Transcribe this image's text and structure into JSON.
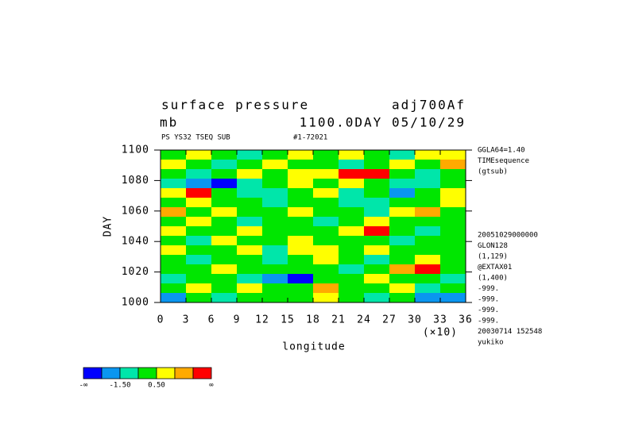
{
  "chart_data": {
    "type": "heatmap",
    "title": "surface pressure",
    "title_right": "adj700Af",
    "unit": "mb",
    "subtitle_right": "1100.0DAY 05/10/29",
    "sub_left": "PS YS32 TSEQ SUB",
    "sub_right": "#1-72021",
    "x_label": "longitude",
    "y_label": "DAY",
    "x_scale_label": "(×10)",
    "xlim": [
      0,
      36
    ],
    "ylim": [
      1000,
      1100
    ],
    "xticks": [
      0,
      3,
      6,
      9,
      12,
      15,
      18,
      21,
      24,
      27,
      30,
      33,
      36
    ],
    "yticks": [
      1000,
      1020,
      1040,
      1060,
      1080,
      1100
    ],
    "x_edges": [
      0,
      3,
      6,
      9,
      12,
      15,
      18,
      21,
      24,
      27,
      30,
      33,
      36
    ],
    "y_edges": [
      1100,
      1093.75,
      1087.5,
      1081.25,
      1075,
      1068.75,
      1062.5,
      1056.25,
      1050,
      1043.75,
      1037.5,
      1031.25,
      1025,
      1018.75,
      1012.5,
      1006.25,
      1000
    ],
    "z": [
      [
        0,
        1,
        0,
        -1,
        0,
        0.8,
        0,
        1,
        0,
        -0.6,
        1,
        1
      ],
      [
        1,
        0,
        -1,
        0,
        1,
        0,
        0,
        -1,
        0,
        1,
        0,
        2
      ],
      [
        0,
        -1,
        0,
        1,
        0,
        0.8,
        1,
        3,
        3,
        0,
        -1,
        0
      ],
      [
        -1,
        -2,
        -3,
        -1,
        0,
        1,
        0,
        1,
        0,
        -1,
        -1,
        0
      ],
      [
        1,
        3,
        0,
        -1,
        -1,
        0,
        1,
        -1,
        0,
        -2,
        0,
        1
      ],
      [
        0,
        1,
        0,
        0,
        -1,
        0,
        0,
        -1,
        -1,
        0,
        0,
        1
      ],
      [
        2,
        0,
        1,
        0,
        0,
        1,
        0,
        0,
        -1,
        1,
        2,
        0
      ],
      [
        0,
        1,
        0,
        -1,
        0,
        0,
        -1,
        0,
        1,
        0,
        0,
        0
      ],
      [
        1,
        0,
        0,
        1,
        0,
        0,
        0,
        1,
        3,
        0,
        -1,
        0
      ],
      [
        0,
        -1,
        1,
        0,
        0,
        1,
        0,
        0,
        0,
        -1,
        0,
        0
      ],
      [
        1,
        0,
        0,
        1,
        -1,
        1,
        1,
        0,
        1,
        0,
        0,
        0
      ],
      [
        0,
        -1,
        0,
        0,
        -1,
        0,
        1,
        0,
        -1,
        0,
        1,
        0
      ],
      [
        0,
        0,
        1,
        0,
        0,
        0,
        0,
        -1,
        0,
        2,
        3,
        0
      ],
      [
        -1,
        0,
        0,
        -1,
        -2,
        -3,
        0,
        0,
        1,
        0,
        0,
        -1
      ],
      [
        0,
        1,
        0,
        1,
        0,
        0,
        2,
        0,
        0,
        1,
        -1,
        0
      ],
      [
        -2,
        0,
        -1,
        0,
        0,
        0,
        1,
        0,
        -1,
        0,
        -2,
        -2
      ]
    ],
    "levels": [
      -2.5,
      -1.5,
      -0.5,
      0.5,
      1.5,
      2.5
    ],
    "colors": [
      "#0000ff",
      "#0a96f0",
      "#00e6aa",
      "#00e600",
      "#ffff00",
      "#ffaa00",
      "#ff0000"
    ],
    "colorbar_ticks": [
      {
        "value": -1.5,
        "label": "-1.50"
      },
      {
        "value": 0.5,
        "label": "0.50"
      }
    ],
    "colorbar_ends": [
      "-∞",
      "∞"
    ],
    "side_notes_top": [
      "GGLA64=1.40",
      "TIMEsequence",
      "(gtsub)"
    ],
    "side_notes_bottom": [
      "20051029000000",
      "GLON128",
      "(1,129)",
      "@EXTAX01",
      "(1,400)",
      "-999.",
      "-999.",
      "-999.",
      "-999.",
      "20030714 152548",
      "yukiko"
    ]
  }
}
